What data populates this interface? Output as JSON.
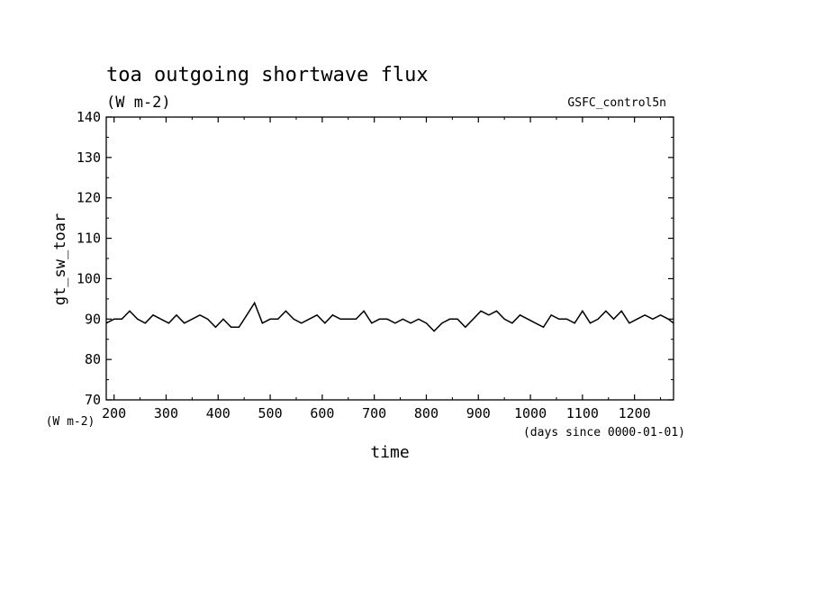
{
  "chart_data": {
    "type": "line",
    "title": "toa outgoing shortwave flux",
    "subtitle": "(W m-2)",
    "source_label": "GSFC_control5n",
    "ylabel": "gt_sw_toar",
    "yunits": "(W m-2)",
    "xlabel": "time",
    "xunits": "(days since 0000-01-01)",
    "xlim": [
      185,
      1275
    ],
    "ylim": [
      70,
      140
    ],
    "xticks": [
      200,
      300,
      400,
      500,
      600,
      700,
      800,
      900,
      1000,
      1100,
      1200
    ],
    "yticks": [
      70,
      80,
      90,
      100,
      110,
      120,
      130,
      140
    ],
    "grid": false,
    "legend": "none",
    "line_color": "#000000",
    "series": [
      {
        "x": [
          185,
          200,
          215,
          230,
          245,
          260,
          275,
          290,
          305,
          320,
          335,
          350,
          365,
          380,
          395,
          410,
          425,
          440,
          455,
          470,
          485,
          500,
          515,
          530,
          545,
          560,
          575,
          590,
          605,
          620,
          635,
          650,
          665,
          680,
          695,
          710,
          725,
          740,
          755,
          770,
          785,
          800,
          815,
          830,
          845,
          860,
          875,
          890,
          905,
          920,
          935,
          950,
          965,
          980,
          995,
          1010,
          1025,
          1040,
          1055,
          1070,
          1085,
          1100,
          1115,
          1130,
          1145,
          1160,
          1175,
          1190,
          1205,
          1220,
          1235,
          1250,
          1265,
          1275
        ],
        "y": [
          89,
          90,
          90,
          92,
          90,
          89,
          91,
          90,
          89,
          91,
          89,
          90,
          91,
          90,
          88,
          90,
          88,
          88,
          91,
          94,
          89,
          90,
          90,
          92,
          90,
          89,
          90,
          91,
          89,
          91,
          90,
          90,
          90,
          92,
          89,
          90,
          90,
          89,
          90,
          89,
          90,
          89,
          87,
          89,
          90,
          90,
          88,
          90,
          92,
          91,
          92,
          90,
          89,
          91,
          90,
          89,
          88,
          91,
          90,
          90,
          89,
          92,
          89,
          90,
          92,
          90,
          92,
          89,
          90,
          91,
          90,
          91,
          90,
          89
        ]
      }
    ]
  }
}
